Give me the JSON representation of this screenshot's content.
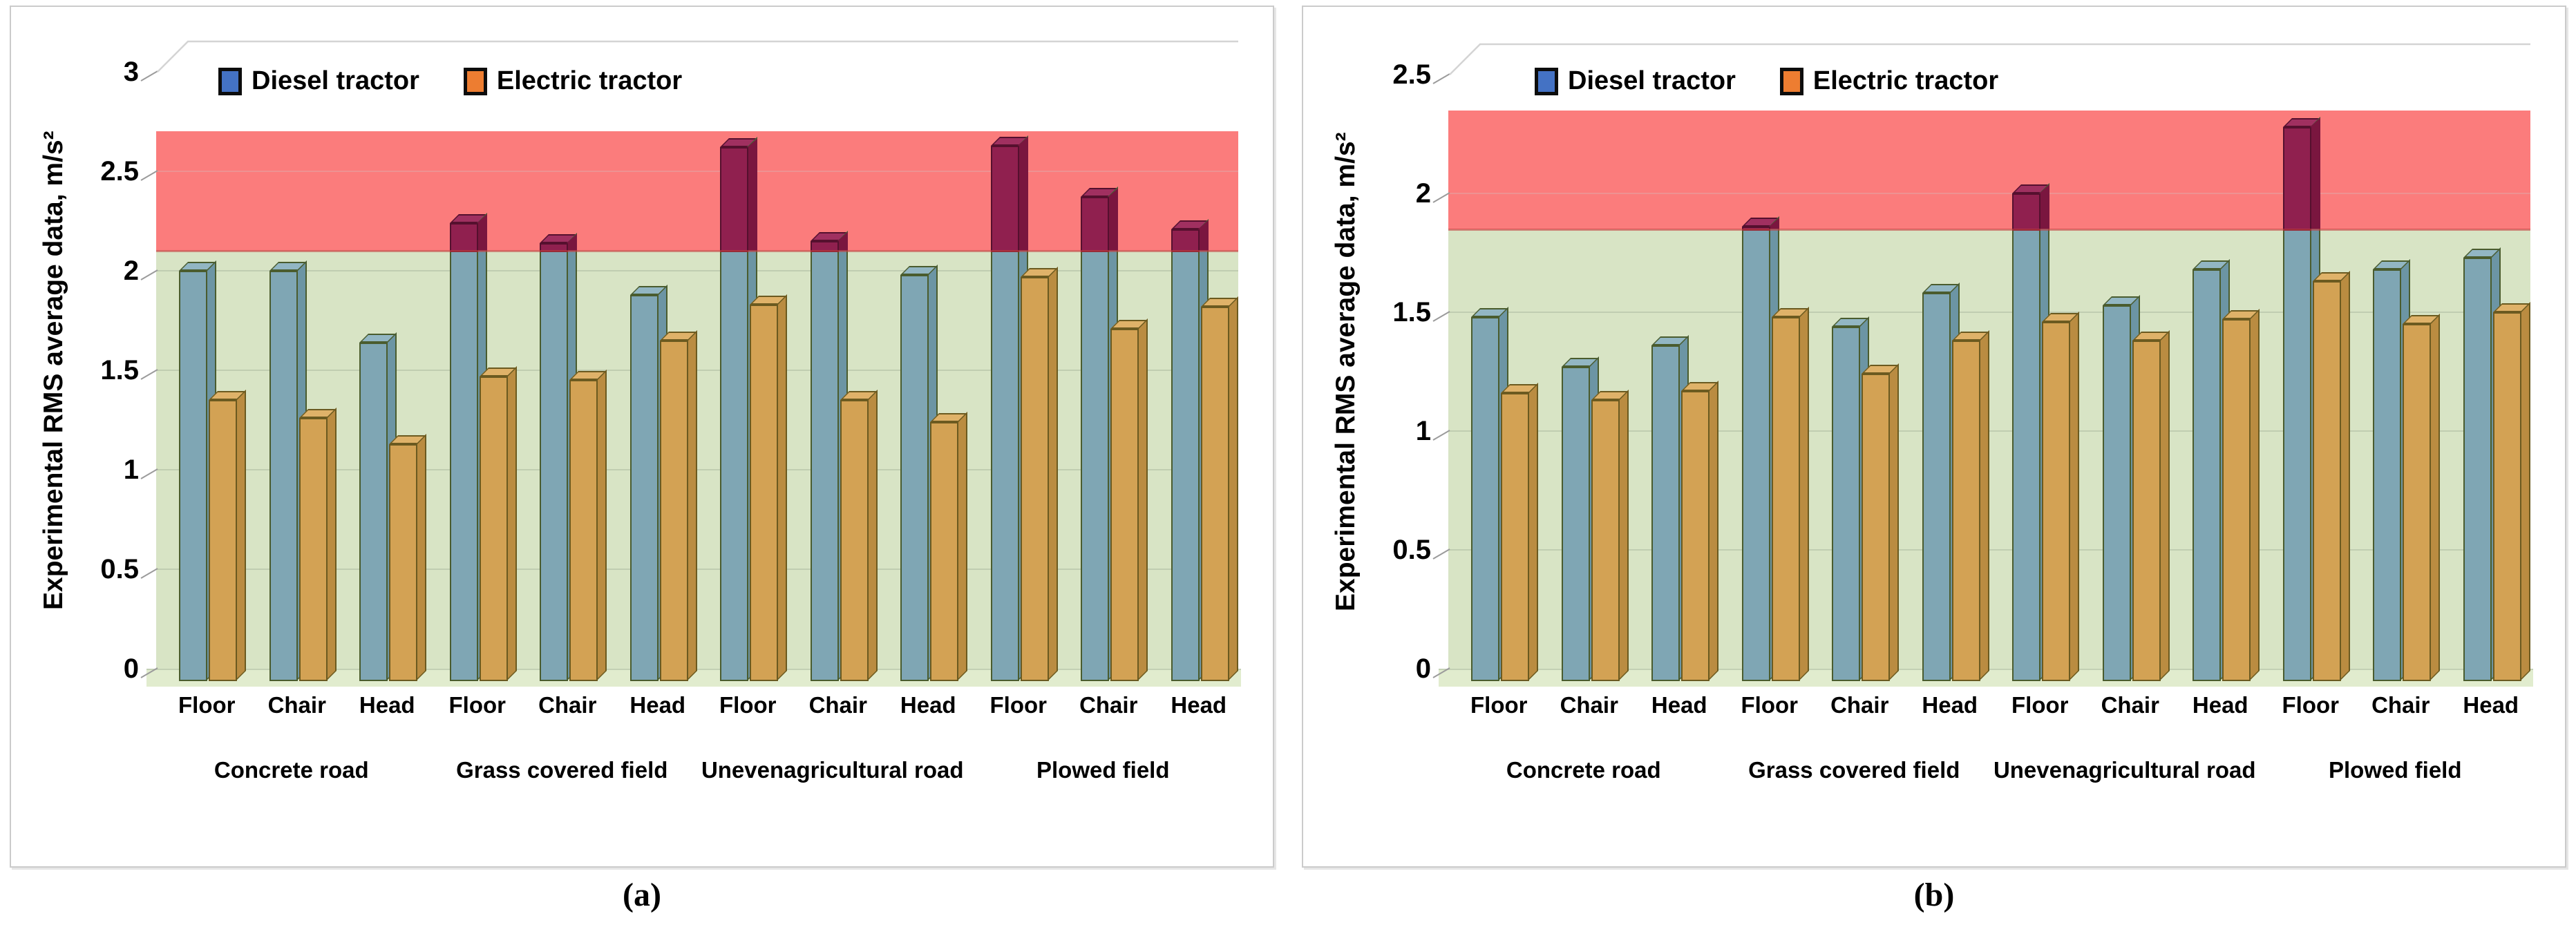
{
  "chart_data": [
    {
      "type": "bar",
      "title": "(a)",
      "ylabel": "Experimental RMS average data, m/s²",
      "xlabel": "",
      "ylim": [
        0,
        3
      ],
      "ytick_step": 0.5,
      "grid": true,
      "legend_position": "top-inside",
      "threshold_band": [
        2.1,
        2.7
      ],
      "zone_colors": {
        "safe": "#D8E4C5",
        "danger": "#FB7C7C",
        "floor": "#E1ECCE"
      },
      "over_limit_bar": {
        "front": "#90204F",
        "side": "#7A163F",
        "top": "#A03060",
        "border": "#55102E"
      },
      "groups": [
        "Concrete road",
        "Grass covered field",
        "Unevenagricultural road",
        "Plowed field"
      ],
      "positions": [
        "Floor",
        "Chair",
        "Head"
      ],
      "series": [
        {
          "name": "Diesel tractor",
          "legend_color": "#4472C4",
          "bar": {
            "front": "#7FA6B4",
            "side": "#6C95A4",
            "top": "#92B6C3",
            "border": "#4A5C2E"
          },
          "values": [
            2.0,
            2.0,
            1.64,
            2.24,
            2.14,
            1.88,
            2.62,
            2.15,
            1.98,
            2.63,
            2.37,
            2.21
          ]
        },
        {
          "name": "Electric tractor",
          "legend_color": "#ED7D31",
          "bar": {
            "front": "#D3A254",
            "side": "#BA8C41",
            "top": "#DFB269",
            "border": "#6B5A20"
          },
          "values": [
            1.35,
            1.26,
            1.13,
            1.47,
            1.45,
            1.65,
            1.83,
            1.35,
            1.24,
            1.97,
            1.71,
            1.82
          ]
        }
      ]
    },
    {
      "type": "bar",
      "title": "(b)",
      "ylabel": "Experimental RMS average data, m/s²",
      "xlabel": "",
      "ylim": [
        0,
        2.5
      ],
      "ytick_step": 0.5,
      "grid": true,
      "legend_position": "top-inside",
      "threshold_band": [
        1.85,
        2.35
      ],
      "zone_colors": {
        "safe": "#D8E4C5",
        "danger": "#FB7C7C",
        "floor": "#E1ECCE"
      },
      "over_limit_bar": {
        "front": "#90204F",
        "side": "#7A163F",
        "top": "#A03060",
        "border": "#55102E"
      },
      "groups": [
        "Concrete road",
        "Grass covered field",
        "Unevenagricultural road",
        "Plowed field"
      ],
      "positions": [
        "Floor",
        "Chair",
        "Head"
      ],
      "series": [
        {
          "name": "Diesel tractor",
          "legend_color": "#4472C4",
          "bar": {
            "front": "#7FA6B4",
            "side": "#6C95A4",
            "top": "#92B6C3",
            "border": "#4A5C2E"
          },
          "values": [
            1.48,
            1.27,
            1.36,
            1.86,
            1.44,
            1.58,
            2.0,
            1.53,
            1.68,
            2.28,
            1.68,
            1.73
          ]
        },
        {
          "name": "Electric tractor",
          "legend_color": "#ED7D31",
          "bar": {
            "front": "#D3A254",
            "side": "#BA8C41",
            "top": "#DFB269",
            "border": "#6B5A20"
          },
          "values": [
            1.16,
            1.13,
            1.17,
            1.48,
            1.24,
            1.38,
            1.46,
            1.38,
            1.47,
            1.63,
            1.45,
            1.5
          ]
        }
      ]
    }
  ]
}
